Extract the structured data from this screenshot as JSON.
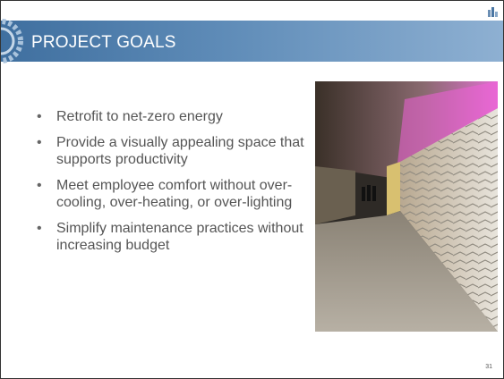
{
  "header": {
    "title": "PROJECT GOALS"
  },
  "bullets": [
    "Retrofit to net-zero energy",
    "Provide a visually appealing space that supports productivity",
    "Meet employee comfort without over-cooling, over-heating, or over-lighting",
    "Simplify maintenance practices without increasing budget"
  ],
  "page_number": "31"
}
